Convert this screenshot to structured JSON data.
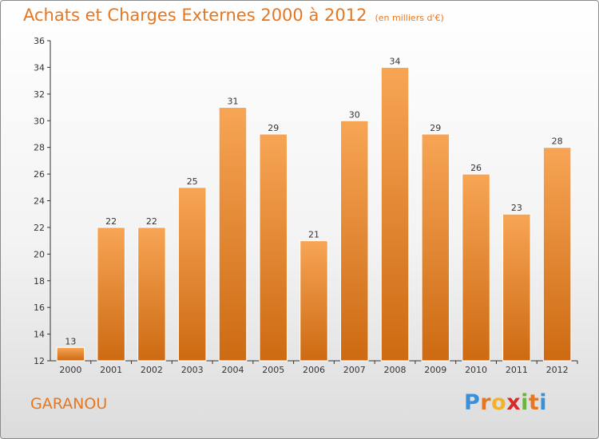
{
  "chart_data": {
    "type": "bar",
    "title": "Achats et Charges Externes 2000 à 2012",
    "subtitle": "(en milliers d'€)",
    "categories": [
      "2000",
      "2001",
      "2002",
      "2003",
      "2004",
      "2005",
      "2006",
      "2007",
      "2008",
      "2009",
      "2010",
      "2011",
      "2012"
    ],
    "values": [
      13,
      22,
      22,
      25,
      31,
      29,
      21,
      30,
      34,
      29,
      26,
      23,
      28
    ],
    "ylim": [
      12,
      36
    ],
    "yticks": [
      12,
      14,
      16,
      18,
      20,
      22,
      24,
      26,
      28,
      30,
      32,
      34,
      36
    ],
    "xlabel": "",
    "ylabel": "",
    "grid": false,
    "legend": "none",
    "colors": {
      "bar_top": "#f7a555",
      "bar_bottom": "#cd6a12",
      "bar_edge": "#ffffff",
      "title": "#e8761e",
      "axis": "#333333"
    }
  },
  "footer": {
    "commune": "GARANOU"
  },
  "logo": {
    "letters": [
      "P",
      "r",
      "o",
      "x",
      "i",
      "t",
      "i"
    ],
    "colors": [
      "#3a8fd6",
      "#e8761e",
      "#f2b22a",
      "#d62b2b",
      "#6cb33f",
      "#e8761e",
      "#3a8fd6"
    ]
  }
}
